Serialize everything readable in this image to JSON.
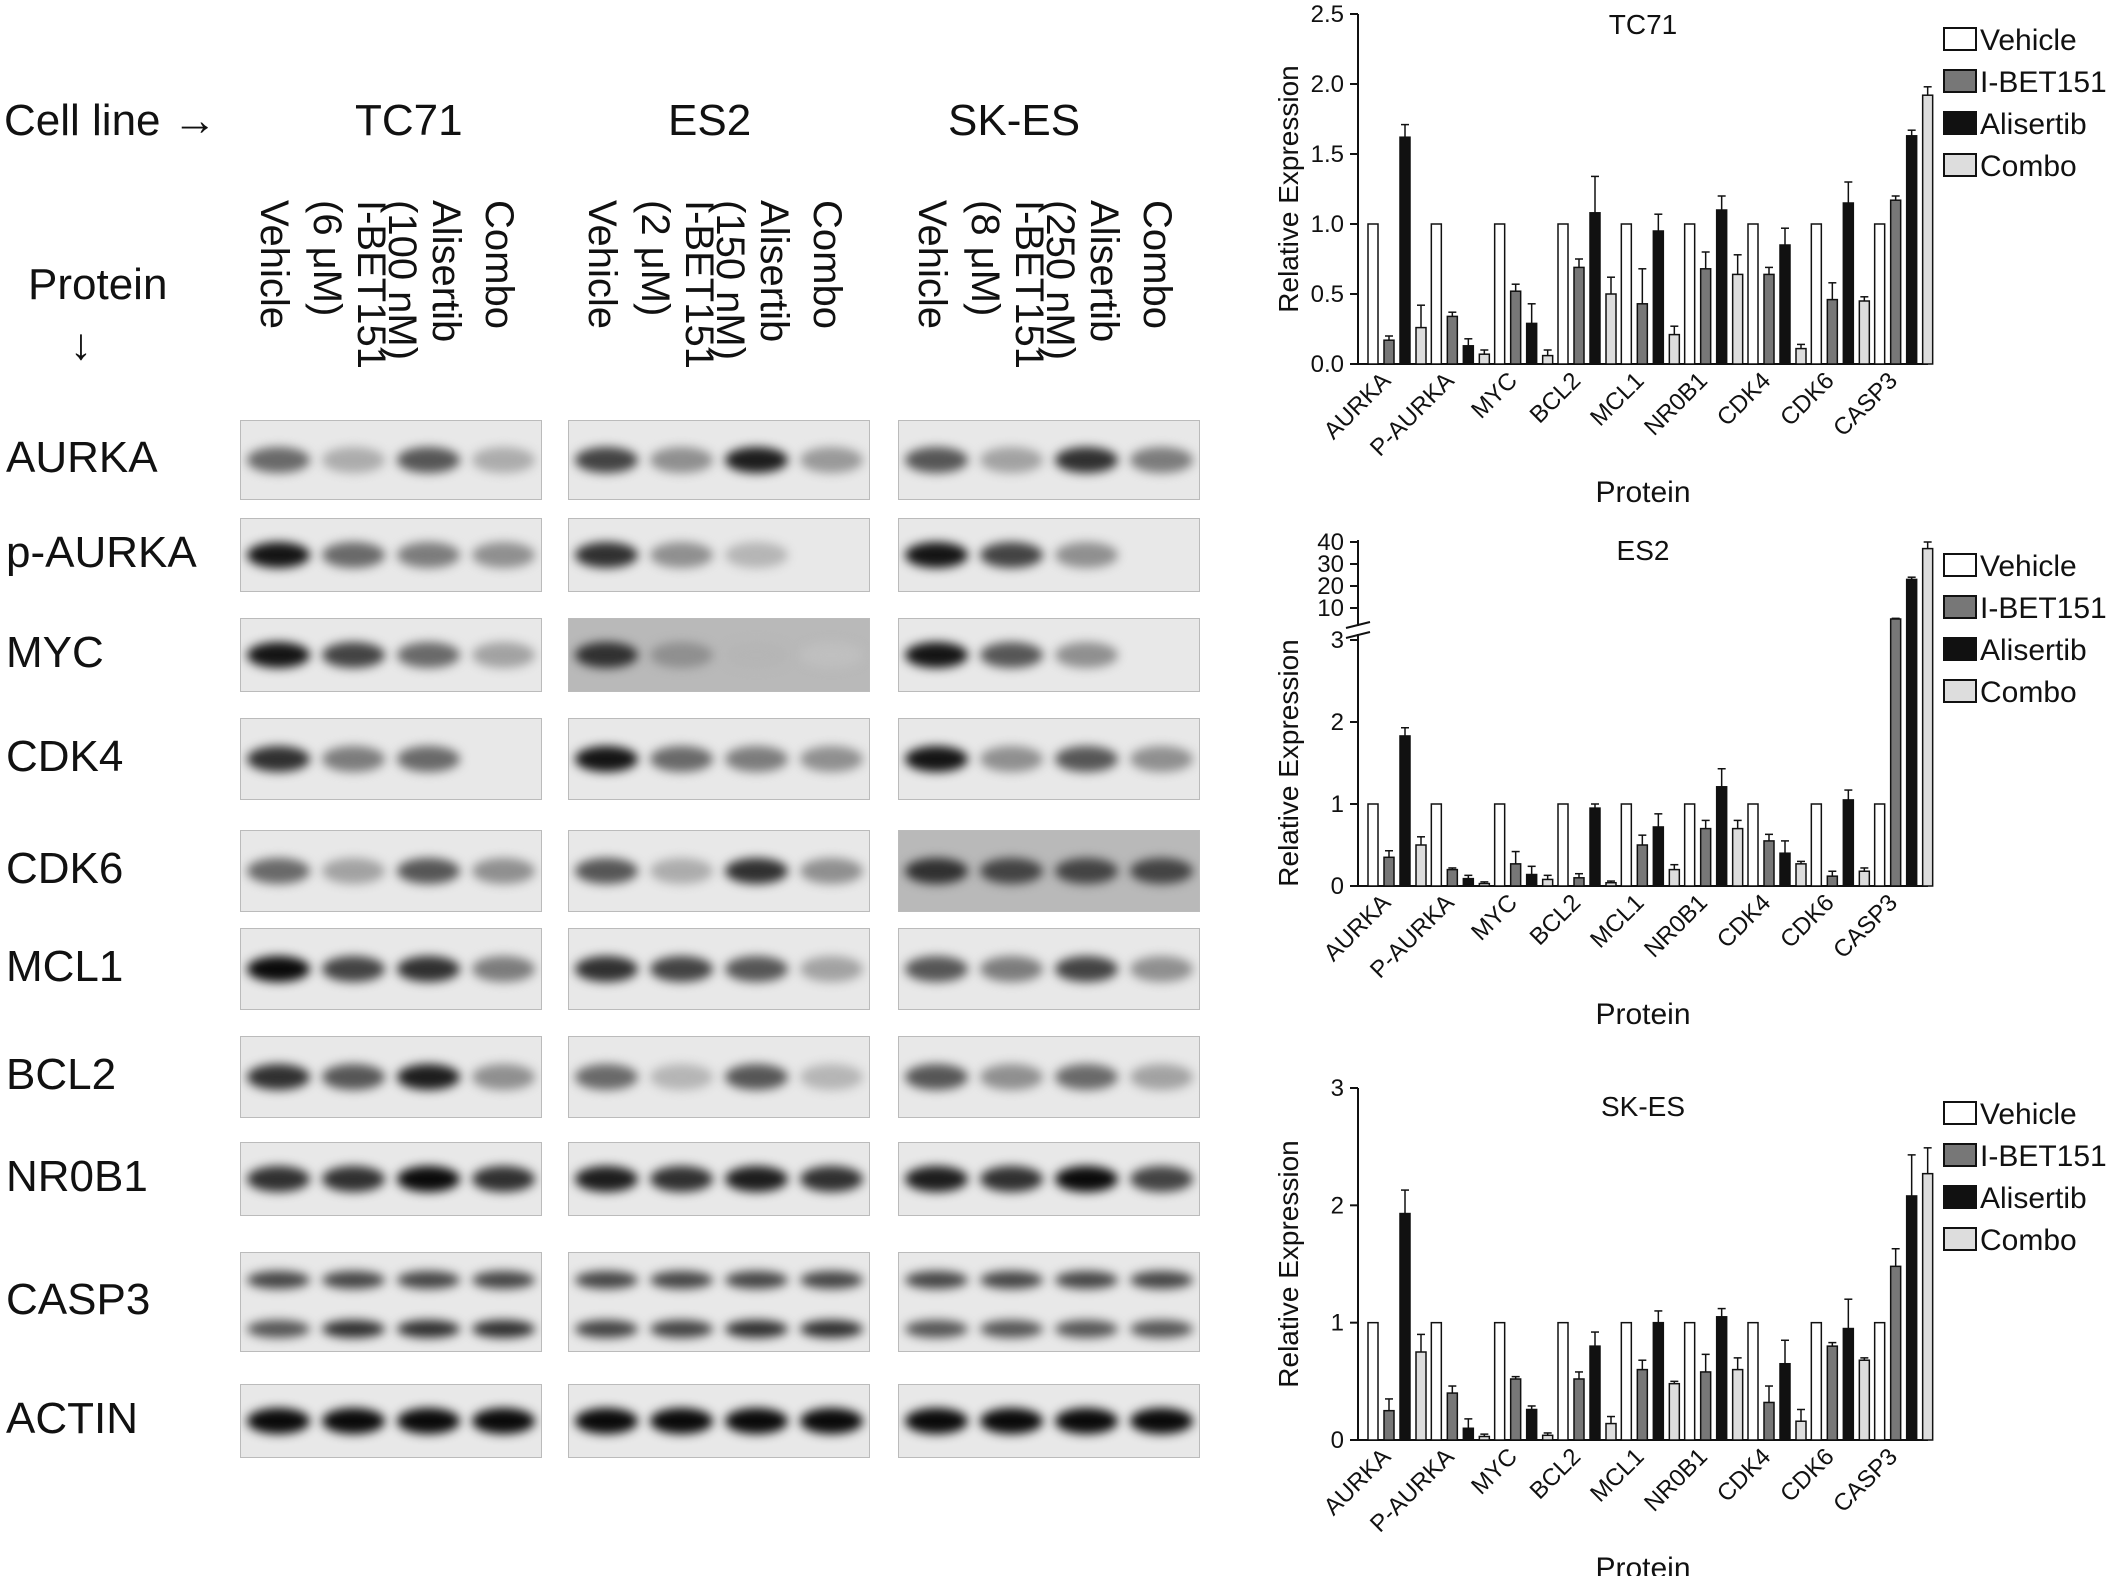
{
  "blot_panel": {
    "cell_line_header": "Cell line →",
    "protein_header": "Protein",
    "protein_arrow": "↓",
    "cell_lines": [
      {
        "name": "TC71",
        "lanes": [
          "Vehicle",
          "I-BET151\n(6 μM)",
          "Alisertib\n(100 nM)",
          "Combo"
        ]
      },
      {
        "name": "ES2",
        "lanes": [
          "Vehicle",
          "I-BET151\n(2 μM)",
          "Alisertib\n(150 nM)",
          "Combo"
        ]
      },
      {
        "name": "SK-ES",
        "lanes": [
          "Vehicle",
          "I-BET151\n(8 μM)",
          "Alisertib\n(250 nM)",
          "Combo"
        ]
      }
    ],
    "proteins": [
      "AURKA",
      "p-AURKA",
      "MYC",
      "CDK4",
      "CDK6",
      "MCL1",
      "BCL2",
      "NR0B1",
      "CASP3",
      "ACTIN"
    ]
  },
  "chart_data": [
    {
      "type": "bar",
      "title": "TC71",
      "xlabel": "Protein",
      "ylabel": "Relative Expression",
      "ylim": [
        0,
        2.5
      ],
      "yticks": [
        "0.0",
        "0.5",
        "1.0",
        "1.5",
        "2.0",
        "2.5"
      ],
      "categories": [
        "AURKA",
        "P-AURKA",
        "MYC",
        "BCL2",
        "MCL1",
        "NR0B1",
        "CDK4",
        "CDK6",
        "CASP3"
      ],
      "series": [
        {
          "name": "Vehicle",
          "color": "#ffffff",
          "values": [
            1,
            1,
            1,
            1,
            1,
            1,
            1,
            1,
            1
          ],
          "errors": [
            0,
            0,
            0,
            0,
            0,
            0,
            0,
            0,
            0
          ]
        },
        {
          "name": "I-BET151",
          "color": "#777777",
          "values": [
            0.17,
            0.34,
            0.52,
            0.69,
            0.43,
            0.68,
            0.64,
            0.46,
            1.17
          ],
          "errors": [
            0.03,
            0.03,
            0.05,
            0.06,
            0.25,
            0.12,
            0.05,
            0.12,
            0.03
          ]
        },
        {
          "name": "Alisertib",
          "color": "#111111",
          "values": [
            1.62,
            0.13,
            0.29,
            1.08,
            0.95,
            1.1,
            0.85,
            1.15,
            1.63
          ],
          "errors": [
            0.09,
            0.05,
            0.14,
            0.26,
            0.12,
            0.1,
            0.12,
            0.15,
            0.04
          ]
        },
        {
          "name": "Combo",
          "color": "#dddddd",
          "values": [
            0.26,
            0.07,
            0.06,
            0.5,
            0.21,
            0.64,
            0.11,
            0.45,
            1.92
          ],
          "errors": [
            0.16,
            0.03,
            0.04,
            0.12,
            0.06,
            0.14,
            0.03,
            0.03,
            0.06
          ]
        }
      ],
      "legend_position": "right"
    },
    {
      "type": "bar",
      "title": "ES2",
      "xlabel": "Protein",
      "ylabel": "Relative Expression",
      "ylim": [
        0,
        40
      ],
      "axis_break": true,
      "yticks_lower": [
        "0",
        "1",
        "2",
        "3"
      ],
      "yticks_upper": [
        "10",
        "20",
        "30",
        "40"
      ],
      "categories": [
        "AURKA",
        "P-AURKA",
        "MYC",
        "BCL2",
        "MCL1",
        "NR0B1",
        "CDK4",
        "CDK6",
        "CASP3"
      ],
      "series": [
        {
          "name": "Vehicle",
          "color": "#ffffff",
          "values": [
            1,
            1,
            1,
            1,
            1,
            1,
            1,
            1,
            1
          ],
          "errors": [
            0,
            0,
            0,
            0,
            0,
            0,
            0,
            0,
            0
          ]
        },
        {
          "name": "I-BET151",
          "color": "#777777",
          "values": [
            0.35,
            0.2,
            0.27,
            0.1,
            0.5,
            0.7,
            0.55,
            0.12,
            5
          ],
          "errors": [
            0.08,
            0.02,
            0.15,
            0.05,
            0.12,
            0.1,
            0.08,
            0.06,
            0.3
          ]
        },
        {
          "name": "Alisertib",
          "color": "#111111",
          "values": [
            1.83,
            0.09,
            0.14,
            0.95,
            0.72,
            1.21,
            0.4,
            1.05,
            23
          ],
          "errors": [
            0.1,
            0.04,
            0.1,
            0.05,
            0.16,
            0.22,
            0.15,
            0.12,
            1
          ]
        },
        {
          "name": "Combo",
          "color": "#dddddd",
          "values": [
            0.5,
            0.03,
            0.08,
            0.04,
            0.2,
            0.7,
            0.27,
            0.18,
            37
          ],
          "errors": [
            0.1,
            0.02,
            0.05,
            0.02,
            0.06,
            0.1,
            0.03,
            0.04,
            3
          ]
        }
      ],
      "legend_position": "right"
    },
    {
      "type": "bar",
      "title": "SK-ES",
      "xlabel": "Protein",
      "ylabel": "Relative Expression",
      "ylim": [
        0,
        3
      ],
      "yticks": [
        "0",
        "1",
        "2",
        "3"
      ],
      "categories": [
        "AURKA",
        "P-AURKA",
        "MYC",
        "BCL2",
        "MCL1",
        "NR0B1",
        "CDK4",
        "CDK6",
        "CASP3"
      ],
      "series": [
        {
          "name": "Vehicle",
          "color": "#ffffff",
          "values": [
            1,
            1,
            1,
            1,
            1,
            1,
            1,
            1,
            1
          ],
          "errors": [
            0,
            0,
            0,
            0,
            0,
            0,
            0,
            0,
            0
          ]
        },
        {
          "name": "I-BET151",
          "color": "#777777",
          "values": [
            0.25,
            0.4,
            0.52,
            0.52,
            0.6,
            0.58,
            0.32,
            0.8,
            1.48
          ],
          "errors": [
            0.1,
            0.06,
            0.02,
            0.06,
            0.08,
            0.15,
            0.14,
            0.03,
            0.15
          ]
        },
        {
          "name": "Alisertib",
          "color": "#111111",
          "values": [
            1.93,
            0.1,
            0.26,
            0.8,
            1.0,
            1.05,
            0.65,
            0.95,
            2.08
          ],
          "errors": [
            0.2,
            0.08,
            0.03,
            0.12,
            0.1,
            0.07,
            0.2,
            0.25,
            0.35
          ]
        },
        {
          "name": "Combo",
          "color": "#dddddd",
          "values": [
            0.75,
            0.03,
            0.04,
            0.14,
            0.48,
            0.6,
            0.16,
            0.68,
            2.27
          ],
          "errors": [
            0.15,
            0.02,
            0.02,
            0.06,
            0.02,
            0.1,
            0.1,
            0.02,
            0.22
          ]
        }
      ],
      "legend_position": "right"
    }
  ]
}
